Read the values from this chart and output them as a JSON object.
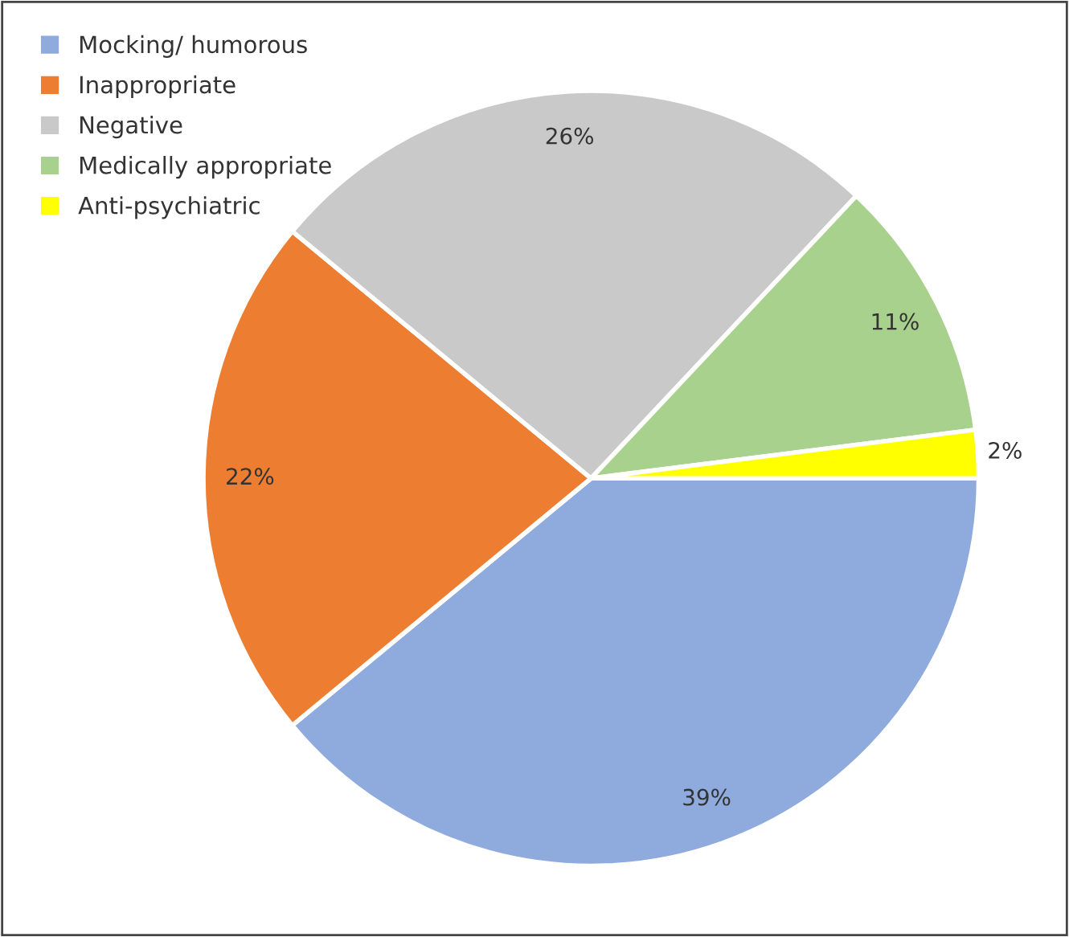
{
  "chart_data": {
    "type": "pie",
    "categories": [
      "Mocking/ humorous",
      "Inappropriate",
      "Negative",
      "Medically appropriate",
      "Anti-psychiatric"
    ],
    "values": [
      39,
      22,
      26,
      11,
      2
    ],
    "colors": [
      "#8faadc",
      "#ed7d31",
      "#c9c9c9",
      "#a9d18e",
      "#ffff00"
    ],
    "value_labels": [
      "39%",
      "22%",
      "26%",
      "11%",
      "2%"
    ],
    "legend": "top left"
  }
}
